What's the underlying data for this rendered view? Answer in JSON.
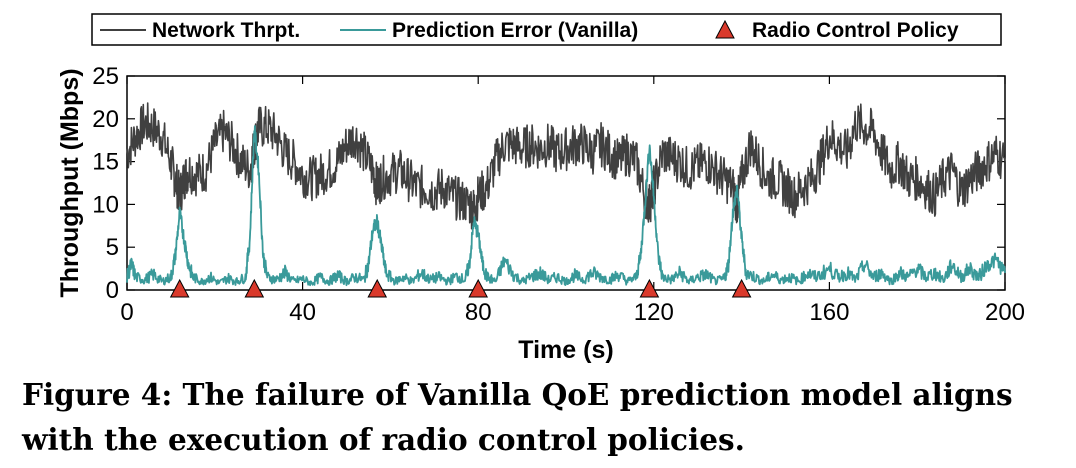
{
  "chart_data": {
    "type": "line",
    "xlabel": "Time (s)",
    "ylabel": "Throughput (Mbps)",
    "xlim": [
      0,
      200
    ],
    "ylim": [
      0,
      25
    ],
    "xticks": [
      0,
      40,
      80,
      120,
      160,
      200
    ],
    "yticks": [
      0,
      5,
      10,
      15,
      20,
      25
    ],
    "grid": false,
    "legend_position": "top",
    "series": [
      {
        "name": "Network Thrpt.",
        "color": "#404040",
        "points": [
          [
            0,
            16
          ],
          [
            2,
            18
          ],
          [
            4,
            19.5
          ],
          [
            6,
            19
          ],
          [
            8,
            18
          ],
          [
            10,
            15
          ],
          [
            11,
            13
          ],
          [
            12,
            11
          ],
          [
            13,
            13
          ],
          [
            14,
            14
          ],
          [
            16,
            13.5
          ],
          [
            18,
            14
          ],
          [
            20,
            17
          ],
          [
            22,
            18.5
          ],
          [
            24,
            17
          ],
          [
            26,
            15
          ],
          [
            28,
            14
          ],
          [
            29,
            17
          ],
          [
            30,
            19
          ],
          [
            32,
            19
          ],
          [
            34,
            18
          ],
          [
            36,
            16
          ],
          [
            38,
            15
          ],
          [
            40,
            13.5
          ],
          [
            42,
            13
          ],
          [
            44,
            13.5
          ],
          [
            46,
            14
          ],
          [
            48,
            15
          ],
          [
            50,
            17
          ],
          [
            52,
            18
          ],
          [
            54,
            16
          ],
          [
            56,
            14
          ],
          [
            57,
            12
          ],
          [
            58,
            13
          ],
          [
            60,
            13.5
          ],
          [
            62,
            14
          ],
          [
            64,
            13
          ],
          [
            66,
            12
          ],
          [
            68,
            12
          ],
          [
            70,
            11.5
          ],
          [
            72,
            12
          ],
          [
            74,
            11
          ],
          [
            76,
            10.5
          ],
          [
            78,
            10
          ],
          [
            79,
            9.5
          ],
          [
            80,
            11
          ],
          [
            82,
            12
          ],
          [
            84,
            15
          ],
          [
            86,
            17
          ],
          [
            88,
            17
          ],
          [
            90,
            16.5
          ],
          [
            92,
            17
          ],
          [
            94,
            16.5
          ],
          [
            96,
            17
          ],
          [
            98,
            16
          ],
          [
            100,
            16.5
          ],
          [
            102,
            17
          ],
          [
            104,
            17
          ],
          [
            106,
            16
          ],
          [
            108,
            17
          ],
          [
            110,
            16
          ],
          [
            112,
            15
          ],
          [
            114,
            16
          ],
          [
            116,
            15
          ],
          [
            118,
            11
          ],
          [
            119,
            10
          ],
          [
            120,
            12
          ],
          [
            122,
            16
          ],
          [
            124,
            15.5
          ],
          [
            126,
            15
          ],
          [
            128,
            14
          ],
          [
            130,
            14.5
          ],
          [
            132,
            15
          ],
          [
            134,
            14
          ],
          [
            136,
            13
          ],
          [
            138,
            12
          ],
          [
            139,
            10
          ],
          [
            140,
            13
          ],
          [
            142,
            17
          ],
          [
            144,
            15
          ],
          [
            146,
            13
          ],
          [
            148,
            13
          ],
          [
            150,
            12
          ],
          [
            152,
            11
          ],
          [
            154,
            12
          ],
          [
            156,
            13
          ],
          [
            158,
            15
          ],
          [
            160,
            18
          ],
          [
            162,
            17
          ],
          [
            164,
            16
          ],
          [
            166,
            19.5
          ],
          [
            168,
            19
          ],
          [
            170,
            18.5
          ],
          [
            172,
            16
          ],
          [
            174,
            14
          ],
          [
            176,
            15
          ],
          [
            178,
            13
          ],
          [
            180,
            13
          ],
          [
            182,
            12
          ],
          [
            184,
            11
          ],
          [
            186,
            13
          ],
          [
            188,
            14
          ],
          [
            190,
            11.5
          ],
          [
            192,
            13
          ],
          [
            194,
            14
          ],
          [
            196,
            15
          ],
          [
            198,
            16
          ],
          [
            200,
            15
          ]
        ]
      },
      {
        "name": "Prediction Error (Vanilla)",
        "color": "#3a9a9a",
        "points": [
          [
            0,
            1.5
          ],
          [
            1,
            3
          ],
          [
            2,
            1.5
          ],
          [
            4,
            1.2
          ],
          [
            6,
            1.8
          ],
          [
            8,
            1
          ],
          [
            10,
            1.5
          ],
          [
            11,
            4
          ],
          [
            12,
            9
          ],
          [
            13,
            6
          ],
          [
            14,
            3
          ],
          [
            15,
            1.5
          ],
          [
            17,
            1
          ],
          [
            19,
            1.5
          ],
          [
            21,
            0.8
          ],
          [
            23,
            1.4
          ],
          [
            25,
            1
          ],
          [
            27,
            1.5
          ],
          [
            28,
            6
          ],
          [
            29,
            19
          ],
          [
            30,
            14
          ],
          [
            31,
            4
          ],
          [
            32,
            1.5
          ],
          [
            34,
            1.2
          ],
          [
            36,
            2
          ],
          [
            38,
            1
          ],
          [
            40,
            1.3
          ],
          [
            42,
            0.8
          ],
          [
            44,
            1.5
          ],
          [
            46,
            1
          ],
          [
            48,
            1.7
          ],
          [
            50,
            1
          ],
          [
            52,
            1.5
          ],
          [
            54,
            1.2
          ],
          [
            55,
            3
          ],
          [
            56,
            7
          ],
          [
            57,
            8
          ],
          [
            58,
            5
          ],
          [
            59,
            2
          ],
          [
            61,
            1
          ],
          [
            63,
            1.5
          ],
          [
            65,
            1
          ],
          [
            67,
            2
          ],
          [
            69,
            1.2
          ],
          [
            71,
            1.5
          ],
          [
            73,
            1
          ],
          [
            75,
            1.6
          ],
          [
            77,
            1.2
          ],
          [
            78,
            3
          ],
          [
            79,
            8
          ],
          [
            80,
            6.5
          ],
          [
            81,
            3
          ],
          [
            82,
            1.5
          ],
          [
            84,
            1
          ],
          [
            86,
            3.5
          ],
          [
            88,
            1.8
          ],
          [
            90,
            1
          ],
          [
            92,
            1.5
          ],
          [
            94,
            2
          ],
          [
            96,
            1.2
          ],
          [
            98,
            1.5
          ],
          [
            100,
            1
          ],
          [
            102,
            1.7
          ],
          [
            104,
            1.2
          ],
          [
            106,
            2
          ],
          [
            108,
            1.5
          ],
          [
            110,
            1.2
          ],
          [
            112,
            1.8
          ],
          [
            114,
            1
          ],
          [
            116,
            1.5
          ],
          [
            117,
            4
          ],
          [
            118,
            10
          ],
          [
            119,
            17
          ],
          [
            120,
            11
          ],
          [
            121,
            4
          ],
          [
            122,
            1.5
          ],
          [
            124,
            1.2
          ],
          [
            126,
            2
          ],
          [
            128,
            1
          ],
          [
            130,
            1.5
          ],
          [
            132,
            1.8
          ],
          [
            134,
            1
          ],
          [
            136,
            1.3
          ],
          [
            137,
            3
          ],
          [
            138,
            9
          ],
          [
            139,
            12
          ],
          [
            140,
            6
          ],
          [
            141,
            2
          ],
          [
            143,
            1.5
          ],
          [
            145,
            1
          ],
          [
            147,
            1.8
          ],
          [
            149,
            1.2
          ],
          [
            151,
            1.5
          ],
          [
            153,
            1
          ],
          [
            155,
            2
          ],
          [
            157,
            1.5
          ],
          [
            160,
            2.5
          ],
          [
            162,
            1.5
          ],
          [
            164,
            2
          ],
          [
            166,
            1.2
          ],
          [
            168,
            3
          ],
          [
            170,
            1.5
          ],
          [
            172,
            2
          ],
          [
            174,
            1
          ],
          [
            176,
            2
          ],
          [
            178,
            1.5
          ],
          [
            180,
            2.5
          ],
          [
            182,
            1.5
          ],
          [
            184,
            2
          ],
          [
            186,
            1.2
          ],
          [
            188,
            3
          ],
          [
            190,
            1.5
          ],
          [
            192,
            2.5
          ],
          [
            194,
            1.5
          ],
          [
            196,
            3
          ],
          [
            198,
            3.5
          ],
          [
            200,
            2
          ]
        ]
      },
      {
        "name": "Radio Control Policy",
        "type": "marker",
        "marker": "triangle",
        "color": "#d9392b",
        "x": [
          12,
          29,
          57,
          80,
          119,
          140
        ],
        "y": [
          0,
          0,
          0,
          0,
          0,
          0
        ]
      }
    ]
  },
  "caption": {
    "line1": "Figure 4: The failure of Vanilla QoE prediction model aligns",
    "line2": "with the execution of radio control policies."
  }
}
